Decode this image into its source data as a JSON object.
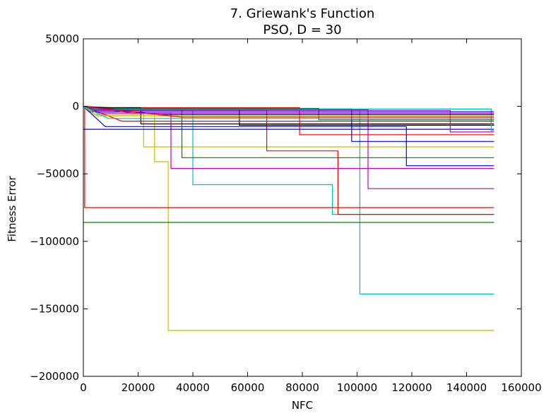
{
  "chart_data": {
    "type": "line",
    "title_line1": "7.   Griewank's Function",
    "title_line2": "PSO, D = 30",
    "xlabel": "NFC",
    "ylabel": "Fitness Error",
    "xlim": [
      0,
      160000
    ],
    "ylim": [
      -200000,
      50000
    ],
    "xticks": [
      0,
      20000,
      40000,
      60000,
      80000,
      100000,
      120000,
      140000,
      160000
    ],
    "xtick_labels": [
      "0",
      "20000",
      "40000",
      "60000",
      "80000",
      "100000",
      "120000",
      "140000",
      "160000"
    ],
    "yticks": [
      50000,
      0,
      -50000,
      -100000,
      -150000,
      -200000
    ],
    "ytick_labels": [
      "50000",
      "0",
      "−50000",
      "−100000",
      "−150000",
      "−200000"
    ],
    "grid": false,
    "legend": "none",
    "series": [
      {
        "color": "#00bfbf",
        "points": [
          [
            0,
            0
          ],
          [
            2000,
            -3000
          ],
          [
            40000,
            -3000
          ],
          [
            40000,
            -58000
          ],
          [
            91000,
            -58000
          ],
          [
            91000,
            -80000
          ],
          [
            150000,
            -80000
          ]
        ]
      },
      {
        "color": "#00bfbf",
        "points": [
          [
            0,
            0
          ],
          [
            3000,
            -2500
          ],
          [
            101000,
            -2500
          ],
          [
            101000,
            -139000
          ],
          [
            150000,
            -139000
          ]
        ]
      },
      {
        "color": "#bfbf00",
        "points": [
          [
            0,
            0
          ],
          [
            4000,
            -6000
          ],
          [
            26000,
            -6000
          ],
          [
            26000,
            -41000
          ],
          [
            31000,
            -41000
          ],
          [
            31000,
            -166000
          ],
          [
            150000,
            -166000
          ]
        ]
      },
      {
        "color": "#bfbf00",
        "points": [
          [
            0,
            0
          ],
          [
            3000,
            -4000
          ],
          [
            22000,
            -4000
          ],
          [
            22000,
            -30000
          ],
          [
            150000,
            -30000
          ]
        ]
      },
      {
        "color": "#ff0000",
        "points": [
          [
            0,
            0
          ],
          [
            500,
            0
          ],
          [
            500,
            -75000
          ],
          [
            150000,
            -75000
          ]
        ]
      },
      {
        "color": "#ff0000",
        "points": [
          [
            0,
            0
          ],
          [
            5000,
            -3000
          ],
          [
            67000,
            -3000
          ],
          [
            67000,
            -33000
          ],
          [
            93000,
            -33000
          ],
          [
            93000,
            -80000
          ],
          [
            150000,
            -80000
          ]
        ]
      },
      {
        "color": "#ff0000",
        "points": [
          [
            0,
            0
          ],
          [
            10000,
            -1000
          ],
          [
            79000,
            -1000
          ],
          [
            79000,
            -21000
          ],
          [
            150000,
            -21000
          ]
        ]
      },
      {
        "color": "#008000",
        "points": [
          [
            0,
            -86000
          ],
          [
            150000,
            -86000
          ]
        ]
      },
      {
        "color": "#008000",
        "points": [
          [
            0,
            0
          ],
          [
            8000,
            -3000
          ],
          [
            36000,
            -3000
          ],
          [
            36000,
            -38000
          ],
          [
            150000,
            -38000
          ]
        ]
      },
      {
        "color": "#bf00bf",
        "points": [
          [
            0,
            0
          ],
          [
            6000,
            -5000
          ],
          [
            32000,
            -5000
          ],
          [
            32000,
            -46000
          ],
          [
            150000,
            -46000
          ]
        ]
      },
      {
        "color": "#bf00bf",
        "points": [
          [
            0,
            0
          ],
          [
            4000,
            -2500
          ],
          [
            104000,
            -2500
          ],
          [
            104000,
            -61000
          ],
          [
            150000,
            -61000
          ]
        ]
      },
      {
        "color": "#0000ff",
        "points": [
          [
            0,
            -17000
          ],
          [
            150000,
            -17000
          ]
        ]
      },
      {
        "color": "#0000ff",
        "points": [
          [
            0,
            0
          ],
          [
            8000,
            -2000
          ],
          [
            98000,
            -2000
          ],
          [
            98000,
            -26000
          ],
          [
            150000,
            -26000
          ]
        ]
      },
      {
        "color": "#0000ff",
        "points": [
          [
            0,
            0
          ],
          [
            8000,
            -15000
          ],
          [
            118000,
            -15000
          ],
          [
            118000,
            -44000
          ],
          [
            150000,
            -44000
          ]
        ]
      },
      {
        "color": "#000000",
        "points": [
          [
            0,
            0
          ],
          [
            3000,
            -1000
          ],
          [
            21000,
            -1000
          ],
          [
            21000,
            -13000
          ],
          [
            150000,
            -13000
          ]
        ]
      },
      {
        "color": "#000000",
        "points": [
          [
            0,
            0
          ],
          [
            10000,
            -2000
          ],
          [
            57000,
            -2000
          ],
          [
            57000,
            -14000
          ],
          [
            150000,
            -14000
          ]
        ]
      },
      {
        "color": "#00bfbf",
        "points": [
          [
            0,
            0
          ],
          [
            1500,
            -2000
          ],
          [
            149000,
            -2000
          ],
          [
            149000,
            -18000
          ],
          [
            150000,
            -18000
          ]
        ]
      },
      {
        "color": "#bf00bf",
        "points": [
          [
            0,
            0
          ],
          [
            3000,
            -3000
          ],
          [
            134000,
            -3000
          ],
          [
            134000,
            -19000
          ],
          [
            150000,
            -19000
          ]
        ]
      },
      {
        "color": "#ff0000",
        "points": [
          [
            0,
            0
          ],
          [
            14000,
            -11000
          ],
          [
            150000,
            -11000
          ]
        ]
      },
      {
        "color": "#008000",
        "points": [
          [
            0,
            0
          ],
          [
            3000,
            -1500
          ],
          [
            86000,
            -1500
          ],
          [
            86000,
            -10000
          ],
          [
            150000,
            -10000
          ]
        ]
      },
      {
        "color": "#0000ff",
        "points": [
          [
            0,
            0
          ],
          [
            2000,
            -4000
          ],
          [
            150000,
            -4000
          ]
        ]
      },
      {
        "color": "#bfbf00",
        "points": [
          [
            0,
            0
          ],
          [
            5000,
            -7000
          ],
          [
            150000,
            -7000
          ]
        ]
      },
      {
        "color": "#000000",
        "points": [
          [
            0,
            0
          ],
          [
            28000,
            -6000
          ],
          [
            150000,
            -6000
          ]
        ]
      },
      {
        "color": "#00bfbf",
        "points": [
          [
            0,
            0
          ],
          [
            9000,
            -9000
          ],
          [
            150000,
            -9000
          ]
        ]
      },
      {
        "color": "#ff0000",
        "points": [
          [
            0,
            0
          ],
          [
            36000,
            -8000
          ],
          [
            150000,
            -8000
          ]
        ]
      },
      {
        "color": "#bf00bf",
        "points": [
          [
            0,
            0
          ],
          [
            18000,
            -5000
          ],
          [
            150000,
            -5000
          ]
        ]
      }
    ]
  }
}
